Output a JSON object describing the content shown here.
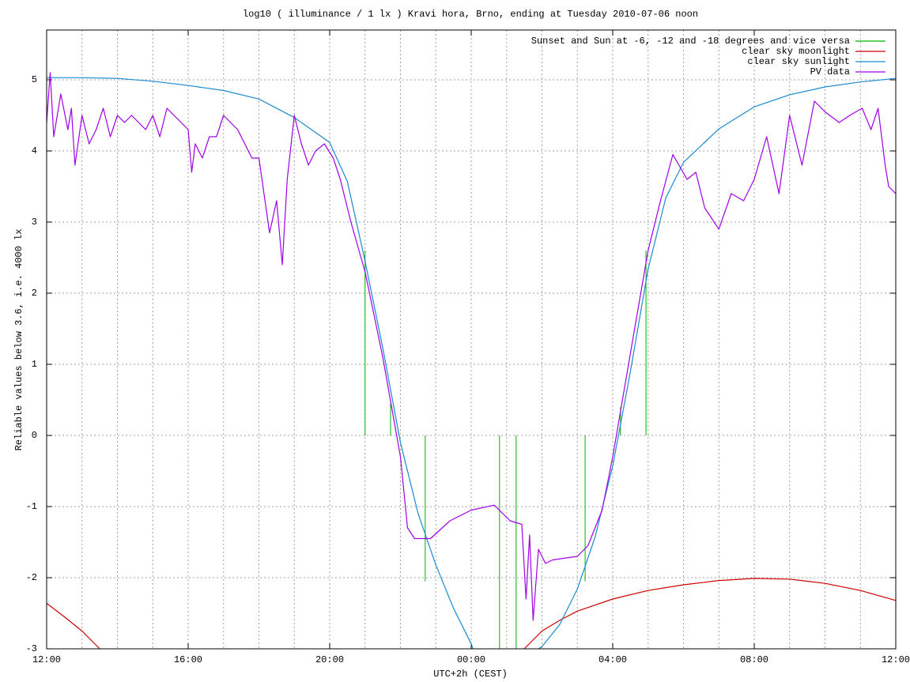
{
  "chart_data": {
    "type": "line",
    "title": "log10 ( illuminance / 1 lx ) Kravi hora, Brno, ending at Tuesday 2010-07-06 noon",
    "xlabel": "UTC+2h (CEST)",
    "ylabel": "Reliable values below 3.6, i.e. 4000 lx",
    "xlim": [
      0,
      24
    ],
    "ylim": [
      -3,
      5.7
    ],
    "xticks": [
      {
        "value": 0,
        "label": "12:00"
      },
      {
        "value": 4,
        "label": "16:00"
      },
      {
        "value": 8,
        "label": "20:00"
      },
      {
        "value": 12,
        "label": "00:00"
      },
      {
        "value": 16,
        "label": "04:00"
      },
      {
        "value": 20,
        "label": "08:00"
      },
      {
        "value": 24,
        "label": "12:00"
      }
    ],
    "xminorticks": [
      1,
      2,
      3,
      5,
      6,
      7,
      9,
      10,
      11,
      13,
      14,
      15,
      17,
      18,
      19,
      21,
      22,
      23
    ],
    "yticks": [
      -3,
      -2,
      -1,
      0,
      1,
      2,
      3,
      4,
      5
    ],
    "grid": true,
    "legend": "top-right",
    "series": [
      {
        "name": "Sunset and Sun at -6, -12 and -18 degrees and vice versa",
        "color": "#00b000",
        "style": "impulses",
        "x": [
          9.0,
          9.72,
          10.7,
          12.8,
          13.27,
          15.22,
          16.22,
          16.94
        ],
        "values": [
          2.6,
          0.45,
          -2.05,
          -3,
          -3,
          -2.05,
          0.4,
          2.6
        ]
      },
      {
        "name": "clear sky moonlight",
        "color": "#cc0000",
        "style": "line",
        "x": [
          0,
          0.5,
          1.0,
          1.5,
          7,
          13.5,
          14,
          14.5,
          15,
          16,
          17,
          18,
          19,
          20,
          21,
          22,
          23,
          24
        ],
        "values": [
          -2.36,
          -2.55,
          -2.75,
          -3.0,
          null,
          -3.0,
          -2.75,
          -2.6,
          -2.47,
          -2.3,
          -2.18,
          -2.1,
          -2.04,
          -2.01,
          -2.02,
          -2.08,
          -2.18,
          -2.32
        ]
      },
      {
        "name": "clear sky sunlight",
        "color": "#1a8ad0",
        "style": "line",
        "x": [
          0,
          1,
          2,
          3,
          4,
          5,
          6,
          7,
          8,
          8.5,
          9,
          9.5,
          10,
          10.5,
          11,
          11.5,
          12,
          12.05,
          13,
          13.9,
          14,
          14.5,
          15,
          15.5,
          16,
          16.5,
          17,
          17.5,
          18,
          19,
          20,
          21,
          22,
          23,
          24
        ],
        "values": [
          5.03,
          5.03,
          5.02,
          4.98,
          4.92,
          4.85,
          4.73,
          4.47,
          4.12,
          3.57,
          2.45,
          1.23,
          -0.1,
          -1.1,
          -1.82,
          -2.43,
          -2.93,
          -3.0,
          null,
          -3.0,
          -2.97,
          -2.66,
          -2.16,
          -1.43,
          -0.43,
          0.9,
          2.34,
          3.34,
          3.84,
          4.31,
          4.62,
          4.79,
          4.9,
          4.97,
          5.02
        ]
      },
      {
        "name": "PV data",
        "color": "#a000e8",
        "style": "line",
        "x": [
          0,
          0.1,
          0.2,
          0.4,
          0.6,
          0.7,
          0.8,
          1.0,
          1.2,
          1.4,
          1.6,
          1.8,
          2.0,
          2.2,
          2.4,
          2.6,
          2.8,
          3.0,
          3.2,
          3.4,
          3.6,
          3.8,
          4.0,
          4.1,
          4.2,
          4.4,
          4.6,
          4.8,
          5.0,
          5.2,
          5.4,
          5.6,
          5.8,
          6.0,
          6.3,
          6.5,
          6.66,
          6.8,
          7.0,
          7.2,
          7.4,
          7.6,
          7.85,
          8.1,
          8.3,
          8.6,
          9.0,
          9.5,
          10.0,
          10.2,
          10.4,
          10.85,
          11.4,
          12.0,
          12.65,
          13.1,
          13.43,
          13.55,
          13.65,
          13.75,
          13.9,
          14.1,
          14.3,
          15.0,
          15.3,
          15.7,
          16.0,
          16.55,
          17.0,
          17.35,
          17.7,
          18.1,
          18.35,
          18.6,
          18.8,
          19.0,
          19.35,
          19.7,
          20.0,
          20.35,
          20.7,
          21.0,
          21.35,
          21.7,
          22.0,
          22.4,
          22.7,
          23.05,
          23.3,
          23.5,
          23.7,
          23.8,
          24.0
        ],
        "values": [
          4.4,
          5.1,
          4.2,
          4.8,
          4.3,
          4.6,
          3.8,
          4.5,
          4.1,
          4.3,
          4.6,
          4.2,
          4.5,
          4.4,
          4.5,
          4.4,
          4.3,
          4.5,
          4.2,
          4.6,
          4.5,
          4.4,
          4.3,
          3.7,
          4.1,
          3.9,
          4.2,
          4.2,
          4.5,
          4.4,
          4.3,
          4.1,
          3.9,
          3.9,
          2.85,
          3.3,
          2.4,
          3.6,
          4.5,
          4.1,
          3.8,
          4.0,
          4.1,
          3.9,
          3.6,
          3.0,
          2.3,
          1.1,
          -0.3,
          -1.3,
          -1.45,
          -1.45,
          -1.2,
          -1.05,
          -0.98,
          -1.2,
          -1.25,
          -2.3,
          -1.4,
          -2.6,
          -1.6,
          -1.8,
          -1.75,
          -1.7,
          -1.55,
          -1.05,
          -0.3,
          1.3,
          2.6,
          3.3,
          3.95,
          3.6,
          3.7,
          3.2,
          3.05,
          2.9,
          3.4,
          3.3,
          3.6,
          4.2,
          3.4,
          4.5,
          3.8,
          4.7,
          4.55,
          4.4,
          4.5,
          4.6,
          4.3,
          4.6,
          3.8,
          3.5,
          3.4
        ]
      }
    ]
  }
}
